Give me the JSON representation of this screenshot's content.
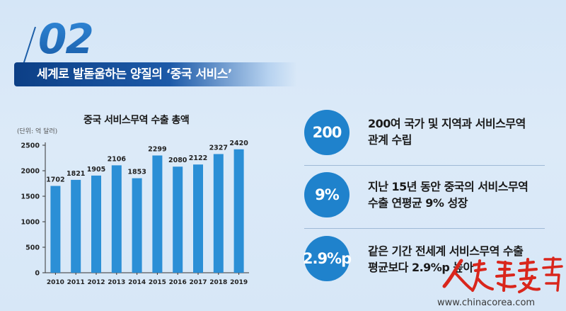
{
  "section": {
    "number": "02",
    "title": "세계로 발돋움하는 양질의 ‘중국 서비스’"
  },
  "chart_title": "중국 서비스무역 수출 총액",
  "unit_label": "(단위: 억 달러)",
  "chart_data": {
    "type": "bar",
    "title": "중국 서비스무역 수출 총액",
    "ylabel": "(단위: 억 달러)",
    "xlabel": "",
    "categories": [
      "2010",
      "2011",
      "2012",
      "2013",
      "2014",
      "2015",
      "2016",
      "2017",
      "2018",
      "2019"
    ],
    "values": [
      1702,
      1821,
      1905,
      2106,
      1853,
      2299,
      2080,
      2122,
      2327,
      2420
    ],
    "ylim": [
      0,
      2500
    ],
    "yticks": [
      0,
      500,
      1000,
      1500,
      2000,
      2500
    ],
    "bar_color": "#2b8fd6",
    "grid": false,
    "data_labels": true
  },
  "stats": [
    {
      "value": "200",
      "line1": "200여 국가 및 지역과 서비스무역",
      "line2": "관계 수립"
    },
    {
      "value": "9%",
      "line1": "지난 15년 동안 중국의 서비스무역",
      "line2": "수출 연평균 9% 성장"
    },
    {
      "value": "2.9%p",
      "line1": "같은 기간 전세계 서비스무역 수출",
      "line2": "평균보다 2.9%p 높아"
    }
  ],
  "colors": {
    "accent": "#1f82cc",
    "title_bar": "#0c3f86",
    "logo_red": "#d9261c"
  },
  "logo_icon": "people-daily-calligraphy-logo",
  "watermark": "www.chinacorea.com"
}
